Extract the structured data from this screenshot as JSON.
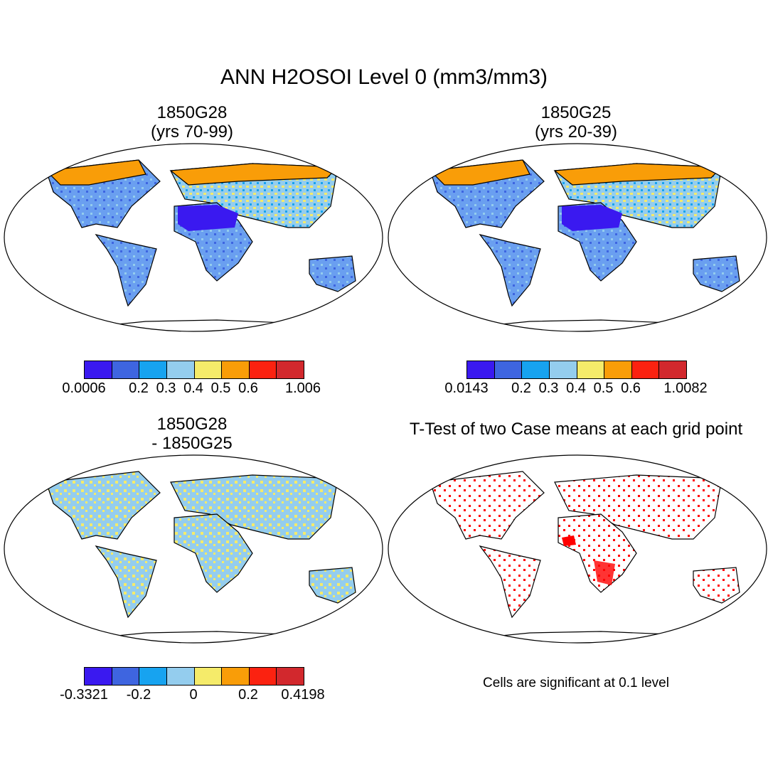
{
  "title": "ANN H2OSOI Level 0 (mm3/mm3)",
  "panels": [
    {
      "title_line1": "1850G28",
      "title_line2": "(yrs 70-99)"
    },
    {
      "title_line1": "1850G25",
      "title_line2": "(yrs 20-39)"
    },
    {
      "title_line1": "1850G28",
      "title_line2": "- 1850G25"
    },
    {
      "title_line1": "T-Test of two Case means at each grid point"
    }
  ],
  "colorbars": [
    {
      "colors": [
        "#3a19f0",
        "#3e65e0",
        "#17a3f0",
        "#94cdee",
        "#f5eb6a",
        "#f99d08",
        "#fb2210",
        "#d2282d"
      ],
      "ticks": [
        {
          "label": "0.0006",
          "pos": 0
        },
        {
          "label": "0.2",
          "pos": 2
        },
        {
          "label": "0.3",
          "pos": 3
        },
        {
          "label": "0.4",
          "pos": 4
        },
        {
          "label": "0.5",
          "pos": 5
        },
        {
          "label": "0.6",
          "pos": 6
        },
        {
          "label": "1.006",
          "pos": 8
        }
      ]
    },
    {
      "colors": [
        "#3a19f0",
        "#3e65e0",
        "#17a3f0",
        "#94cdee",
        "#f5eb6a",
        "#f99d08",
        "#fb2210",
        "#d2282d"
      ],
      "ticks": [
        {
          "label": "0.0143",
          "pos": 0
        },
        {
          "label": "0.2",
          "pos": 2
        },
        {
          "label": "0.3",
          "pos": 3
        },
        {
          "label": "0.4",
          "pos": 4
        },
        {
          "label": "0.5",
          "pos": 5
        },
        {
          "label": "0.6",
          "pos": 6
        },
        {
          "label": "1.0082",
          "pos": 8
        }
      ]
    },
    {
      "colors": [
        "#3a19f0",
        "#3e65e0",
        "#17a3f0",
        "#94cdee",
        "#f5eb6a",
        "#f99d08",
        "#fb2210",
        "#d2282d"
      ],
      "ticks": [
        {
          "label": "-0.3321",
          "pos": 0
        },
        {
          "label": "-0.2",
          "pos": 2
        },
        {
          "label": "0",
          "pos": 4
        },
        {
          "label": "0.2",
          "pos": 6
        },
        {
          "label": "0.4198",
          "pos": 8
        }
      ]
    }
  ],
  "note": "Cells are significant at 0.1 level"
}
